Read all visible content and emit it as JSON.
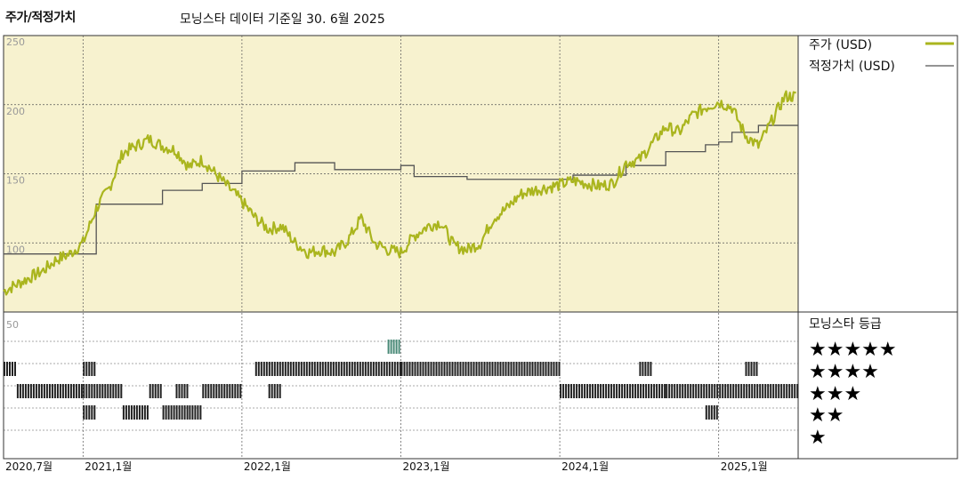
{
  "header": {
    "title": "주가/적정가치",
    "subtitle": "모닝스타 데이터 기준일 30. 6월 2025"
  },
  "colors": {
    "panel_bg": "#f7f2cf",
    "price_line": "#aab51e",
    "fair_line": "#555555",
    "grid": "#555555",
    "bar_dark": "#222222",
    "bar_teal": "#4a8a78"
  },
  "legend": {
    "price_label": "주가 (USD)",
    "fair_label": "적정가치 (USD)",
    "rating_title": "모닝스타 등급",
    "rating_labels": [
      "★★★★★",
      "★★★★",
      "★★★",
      "★★",
      "★"
    ]
  },
  "chart_data": {
    "type": "line",
    "x_start": "2020-07",
    "x_end": "2025-06",
    "x_tick_labels": [
      "2020,7월",
      "2021,1월",
      "2022,1월",
      "2023,1월",
      "2024,1월",
      "2025,1월"
    ],
    "x_tick_dates": [
      "2020-07",
      "2021-01",
      "2022-01",
      "2023-01",
      "2024-01",
      "2025-01"
    ],
    "y_tick_labels": [
      "250",
      "200",
      "150",
      "100",
      "50"
    ],
    "ylim": [
      50,
      250
    ],
    "series": [
      {
        "name": "주가 (USD)",
        "color": "#aab51e",
        "x": [
          "2020-07",
          "2020-08",
          "2020-09",
          "2020-10",
          "2020-11",
          "2020-12",
          "2021-01",
          "2021-02",
          "2021-03",
          "2021-04",
          "2021-05",
          "2021-06",
          "2021-07",
          "2021-08",
          "2021-09",
          "2021-10",
          "2021-11",
          "2021-12",
          "2022-01",
          "2022-02",
          "2022-03",
          "2022-04",
          "2022-05",
          "2022-06",
          "2022-07",
          "2022-08",
          "2022-09",
          "2022-10",
          "2022-11",
          "2022-12",
          "2023-01",
          "2023-02",
          "2023-03",
          "2023-04",
          "2023-05",
          "2023-06",
          "2023-07",
          "2023-08",
          "2023-09",
          "2023-10",
          "2023-11",
          "2023-12",
          "2024-01",
          "2024-02",
          "2024-03",
          "2024-04",
          "2024-05",
          "2024-06",
          "2024-07",
          "2024-08",
          "2024-09",
          "2024-10",
          "2024-11",
          "2024-12",
          "2025-01",
          "2025-02",
          "2025-03",
          "2025-04",
          "2025-05",
          "2025-06"
        ],
        "values": [
          65,
          70,
          75,
          80,
          88,
          92,
          100,
          125,
          140,
          165,
          170,
          175,
          170,
          167,
          155,
          160,
          150,
          140,
          130,
          118,
          110,
          112,
          100,
          93,
          95,
          93,
          102,
          118,
          100,
          95,
          93,
          105,
          112,
          115,
          98,
          95,
          100,
          118,
          125,
          135,
          138,
          140,
          142,
          145,
          143,
          141,
          143,
          158,
          160,
          172,
          184,
          180,
          192,
          198,
          202,
          198,
          178,
          170,
          188,
          206
        ],
        "marker": "line"
      },
      {
        "name": "적정가치 (USD)",
        "color": "#555555",
        "x": [
          "2020-07",
          "2020-08",
          "2020-09",
          "2020-10",
          "2020-11",
          "2020-12",
          "2021-01",
          "2021-02",
          "2021-03",
          "2021-04",
          "2021-05",
          "2021-06",
          "2021-07",
          "2021-08",
          "2021-09",
          "2021-10",
          "2021-11",
          "2021-12",
          "2022-01",
          "2022-02",
          "2022-03",
          "2022-04",
          "2022-05",
          "2022-06",
          "2022-07",
          "2022-08",
          "2022-09",
          "2022-10",
          "2022-11",
          "2022-12",
          "2023-01",
          "2023-02",
          "2023-03",
          "2023-04",
          "2023-05",
          "2023-06",
          "2023-07",
          "2023-08",
          "2023-09",
          "2023-10",
          "2023-11",
          "2023-12",
          "2024-01",
          "2024-02",
          "2024-03",
          "2024-04",
          "2024-05",
          "2024-06",
          "2024-07",
          "2024-08",
          "2024-09",
          "2024-10",
          "2024-11",
          "2024-12",
          "2025-01",
          "2025-02",
          "2025-03",
          "2025-04",
          "2025-05",
          "2025-06"
        ],
        "values": [
          92,
          92,
          92,
          92,
          92,
          92,
          92,
          128,
          128,
          128,
          128,
          128,
          138,
          138,
          138,
          143,
          143,
          143,
          152,
          152,
          152,
          152,
          158,
          158,
          158,
          153,
          153,
          153,
          153,
          153,
          156,
          148,
          148,
          148,
          148,
          146,
          146,
          146,
          146,
          146,
          146,
          146,
          146,
          149,
          149,
          149,
          149,
          156,
          156,
          156,
          166,
          166,
          166,
          171,
          173,
          180,
          180,
          185,
          185,
          185
        ]
      }
    ],
    "rating_rows": [
      {
        "stars": 5,
        "color": "#4a8a78",
        "periods": [
          [
            "2022-12",
            "2023-01"
          ]
        ]
      },
      {
        "stars": 4,
        "color": "#222222",
        "periods": [
          [
            "2020-07",
            "2020-08"
          ],
          [
            "2021-01",
            "2021-02"
          ],
          [
            "2022-02",
            "2023-01"
          ],
          [
            "2023-01",
            "2024-01"
          ],
          [
            "2024-07",
            "2024-08"
          ],
          [
            "2025-03",
            "2025-04"
          ]
        ]
      },
      {
        "stars": 3,
        "color": "#222222",
        "periods": [
          [
            "2020-08",
            "2021-01"
          ],
          [
            "2021-01",
            "2021-04"
          ],
          [
            "2021-06",
            "2021-07"
          ],
          [
            "2021-08",
            "2021-09"
          ],
          [
            "2021-10",
            "2022-01"
          ],
          [
            "2022-03",
            "2022-04"
          ],
          [
            "2024-01",
            "2024-09"
          ],
          [
            "2024-09",
            "2025-07"
          ]
        ]
      },
      {
        "stars": 2,
        "color": "#222222",
        "periods": [
          [
            "2021-01",
            "2021-02"
          ],
          [
            "2021-04",
            "2021-06"
          ],
          [
            "2021-07",
            "2021-09"
          ],
          [
            "2021-09",
            "2021-10"
          ],
          [
            "2024-12",
            "2025-01"
          ]
        ]
      }
    ]
  }
}
